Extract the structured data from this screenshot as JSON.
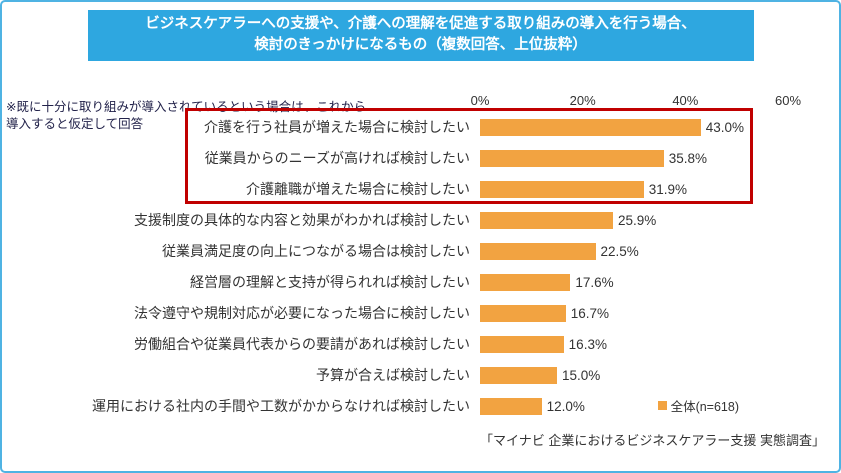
{
  "title": {
    "line1": "ビジネスケアラーへの支援や、介護への理解を促進する取り組みの導入を行う場合、",
    "line2": "検討のきっかけになるもの（複数回答、上位抜粋）"
  },
  "note": "※既に十分に取り組みが導入されているという場合は、これから導入すると仮定して回答",
  "chart_data": {
    "type": "bar",
    "orientation": "horizontal",
    "title": "ビジネスケアラーへの支援や、介護への理解を促進する取り組みの導入を行う場合、検討のきっかけになるもの（複数回答、上位抜粋）",
    "categories": [
      "介護を行う社員が増えた場合に検討したい",
      "従業員からのニーズが高ければ検討したい",
      "介護離職が増えた場合に検討したい",
      "支援制度の具体的な内容と効果がわかれば検討したい",
      "従業員満足度の向上につながる場合は検討したい",
      "経営層の理解と支持が得られれば検討したい",
      "法令遵守や規制対応が必要になった場合に検討したい",
      "労働組合や従業員代表からの要請があれば検討したい",
      "予算が合えば検討したい",
      "運用における社内の手間や工数がかからなければ検討したい"
    ],
    "values": [
      43.0,
      35.8,
      31.9,
      25.9,
      22.5,
      17.6,
      16.7,
      16.3,
      15.0,
      12.0
    ],
    "value_labels": [
      "43.0%",
      "35.8%",
      "31.9%",
      "25.9%",
      "22.5%",
      "17.6%",
      "16.7%",
      "16.3%",
      "15.0%",
      "12.0%"
    ],
    "axis_ticks": [
      "0%",
      "20%",
      "40%",
      "60%"
    ],
    "xlim": [
      0,
      60
    ],
    "grid": false,
    "legend_position": "bottom-right",
    "highlighted_rows": [
      0,
      1,
      2
    ],
    "legend": "全体(n=618)",
    "bar_color": "#F2A341",
    "highlight_color": "#C00000"
  },
  "source": "「マイナビ 企業におけるビジネスケアラー支援 実態調査」",
  "colors": {
    "title_bg": "#2EA7E0",
    "frame_border": "#4FB3E3",
    "bar": "#F2A341",
    "highlight": "#C00000",
    "note_text": "#22224A"
  }
}
